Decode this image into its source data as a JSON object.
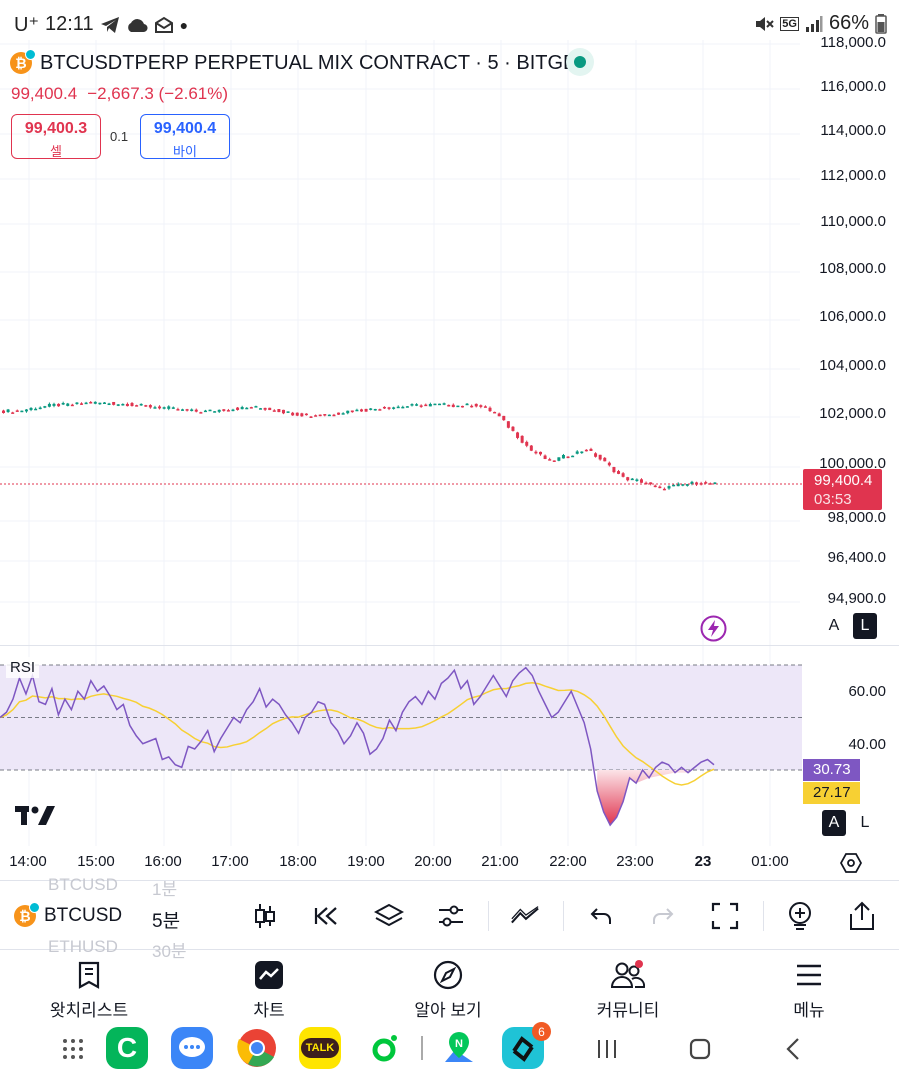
{
  "status_bar": {
    "carrier": "U⁺",
    "time": "12:11",
    "battery": "66%",
    "network": "5G"
  },
  "header": {
    "symbol": "BTCUSDTPERP PERPETUAL MIX CONTRACT · 5 · BITGET",
    "last_price": "99,400.4",
    "change": "−2,667.3 (−2.61%)",
    "sell_price": "99,400.3",
    "sell_label": "셀",
    "spread": "0.1",
    "buy_price": "99,400.4",
    "buy_label": "바이"
  },
  "price_axis": {
    "labels": [
      "118,000.0",
      "116,000.0",
      "114,000.0",
      "112,000.0",
      "110,000.0",
      "108,000.0",
      "106,000.0",
      "104,000.0",
      "102,000.0",
      "100,000.0",
      "98,000.0",
      "96,400.0",
      "94,900.0"
    ],
    "current_price": "99,400.4",
    "countdown": "03:53"
  },
  "chart_data": {
    "type": "candlestick",
    "title": "BTCUSDTPERP PERPETUAL MIX CONTRACT · 5 · BITGET",
    "x_labels": [
      "14:00",
      "15:00",
      "16:00",
      "17:00",
      "18:00",
      "19:00",
      "20:00",
      "21:00",
      "22:00",
      "23:00",
      "23",
      "01:00"
    ],
    "close_series": [
      {
        "time": "13:40",
        "close": 102450
      },
      {
        "time": "14:00",
        "close": 102600
      },
      {
        "time": "14:20",
        "close": 102700
      },
      {
        "time": "14:40",
        "close": 102720
      },
      {
        "time": "15:00",
        "close": 102800
      },
      {
        "time": "15:20",
        "close": 102780
      },
      {
        "time": "15:40",
        "close": 102740
      },
      {
        "time": "16:00",
        "close": 102650
      },
      {
        "time": "16:20",
        "close": 102600
      },
      {
        "time": "16:40",
        "close": 102480
      },
      {
        "time": "17:00",
        "close": 102420
      },
      {
        "time": "17:20",
        "close": 102500
      },
      {
        "time": "17:40",
        "close": 102560
      },
      {
        "time": "18:00",
        "close": 102600
      },
      {
        "time": "18:20",
        "close": 102500
      },
      {
        "time": "18:40",
        "close": 102350
      },
      {
        "time": "19:00",
        "close": 102250
      },
      {
        "time": "19:20",
        "close": 102300
      },
      {
        "time": "19:40",
        "close": 102450
      },
      {
        "time": "20:00",
        "close": 102500
      },
      {
        "time": "20:20",
        "close": 102600
      },
      {
        "time": "20:40",
        "close": 102650
      },
      {
        "time": "21:00",
        "close": 102700
      },
      {
        "time": "21:20",
        "close": 102720
      },
      {
        "time": "21:40",
        "close": 102680
      },
      {
        "time": "22:00",
        "close": 102700
      },
      {
        "time": "22:10",
        "close": 102400
      },
      {
        "time": "22:20",
        "close": 101600
      },
      {
        "time": "22:30",
        "close": 100800
      },
      {
        "time": "22:40",
        "close": 100350
      },
      {
        "time": "22:50",
        "close": 100600
      },
      {
        "time": "23:00",
        "close": 100850
      },
      {
        "time": "23:10",
        "close": 100300
      },
      {
        "time": "23:20",
        "close": 99650
      },
      {
        "time": "23:30",
        "close": 99500
      },
      {
        "time": "23:40",
        "close": 99200
      },
      {
        "time": "23:50",
        "close": 99350
      },
      {
        "time": "00:00",
        "close": 99450
      },
      {
        "time": "00:05",
        "close": 99400
      }
    ],
    "ylim": [
      94900,
      118000
    ]
  },
  "rsi": {
    "label": "RSI",
    "levels": [
      "60.00",
      "40.00"
    ],
    "value": "30.73",
    "ma_value": "27.17",
    "upper": 70,
    "middle": 50,
    "lower": 30,
    "values": [
      50,
      52,
      57,
      65,
      59,
      66,
      56,
      55,
      61,
      51,
      57,
      53,
      60,
      57,
      64,
      60,
      62,
      58,
      53,
      55,
      47,
      43,
      40,
      41,
      42,
      34,
      35,
      32,
      31,
      39,
      38,
      41,
      45,
      37,
      42,
      46,
      50,
      48,
      53,
      56,
      61,
      54,
      57,
      55,
      51,
      48,
      44,
      50,
      52,
      56,
      55,
      48,
      45,
      40,
      43,
      48,
      44,
      36,
      38,
      42,
      49,
      45,
      52,
      56,
      58,
      55,
      60,
      57,
      63,
      65,
      68,
      61,
      64,
      55,
      58,
      62,
      66,
      62,
      58,
      64,
      67,
      69,
      66,
      60,
      55,
      50,
      52,
      56,
      60,
      54,
      48,
      38,
      22,
      14,
      9,
      12,
      18,
      27,
      25,
      30,
      27,
      31,
      33,
      32,
      29,
      31,
      29,
      31,
      33,
      34,
      32
    ]
  },
  "time_axis": {
    "labels": [
      "14:00",
      "15:00",
      "16:00",
      "17:00",
      "18:00",
      "19:00",
      "20:00",
      "21:00",
      "22:00",
      "23:00",
      "23",
      "01:00"
    ]
  },
  "toolbar": {
    "symbol": "BTCUSD",
    "interval": "5분",
    "ghost_symbol_above": "BTCUSD",
    "ghost_interval_above": "1분",
    "ghost_symbol_below": "ETHUSD",
    "ghost_interval_below": "30분"
  },
  "bottom_nav": [
    {
      "label": "왓치리스트",
      "icon": "watchlist-icon"
    },
    {
      "label": "차트",
      "icon": "chart-icon"
    },
    {
      "label": "알아 보기",
      "icon": "compass-icon"
    },
    {
      "label": "커뮤니티",
      "icon": "community-icon"
    },
    {
      "label": "메뉴",
      "icon": "menu-icon"
    }
  ],
  "android_apps": {
    "badge_count": "6",
    "kakao_label": "TALK"
  },
  "scale_buttons": {
    "auto": "A",
    "log": "L"
  },
  "colors": {
    "up": "#0a9981",
    "down": "#e0344f",
    "rsi_line": "#7e57c2",
    "rsi_ma": "#f7d033",
    "rsi_band": "#ede7f8"
  }
}
